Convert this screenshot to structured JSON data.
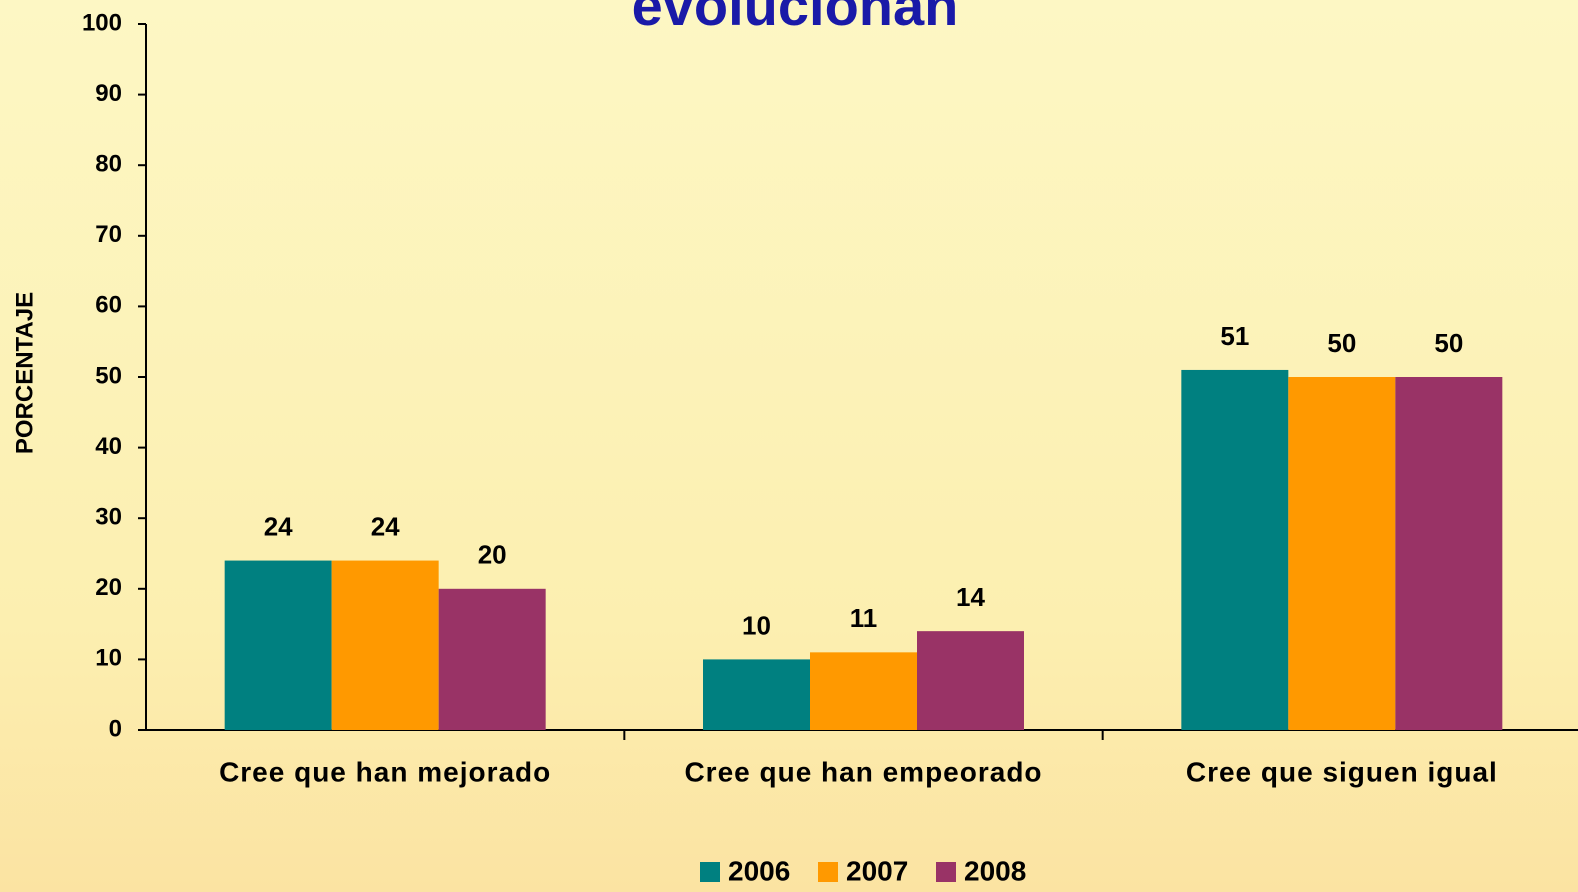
{
  "chart_data": {
    "type": "bar",
    "title": "evolucionan",
    "y_label": "PORCENTAJE",
    "categories": [
      "Cree que han mejorado",
      "Cree que han empeorado",
      "Cree que siguen igual"
    ],
    "series": [
      {
        "name": "2006",
        "color": "#008080",
        "values": [
          24,
          10,
          51
        ]
      },
      {
        "name": "2007",
        "color": "#ff9900",
        "values": [
          24,
          11,
          50
        ]
      },
      {
        "name": "2008",
        "color": "#993366",
        "values": [
          20,
          14,
          50
        ]
      }
    ],
    "ylim": [
      0,
      100
    ],
    "yticks": [
      0,
      10,
      20,
      30,
      40,
      50,
      60,
      70,
      80,
      90,
      100
    ],
    "legend": "bottom"
  }
}
